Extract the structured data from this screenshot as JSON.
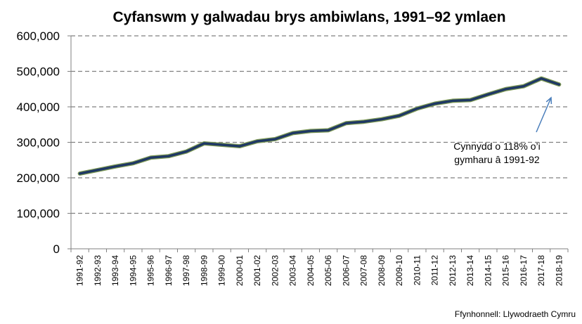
{
  "chart_data": {
    "type": "line",
    "title": "Cyfanswm y galwadau brys ambiwlans, 1991–92 ymlaen",
    "categories": [
      "1991-92",
      "1992-93",
      "1993-94",
      "1994-95",
      "1995-96",
      "1996-97",
      "1997-98",
      "1998-99",
      "1999-00",
      "2000-01",
      "2001-02",
      "2002-03",
      "2003-04",
      "2004-05",
      "2005-06",
      "2006-07",
      "2007-08",
      "2008-09",
      "2009-10",
      "2010-11",
      "2011-12",
      "2012-13",
      "2013-14",
      "2014-15",
      "2015-16",
      "2016-17",
      "2017-18",
      "2018-19"
    ],
    "series": [
      {
        "values": [
          212000,
          222000,
          232000,
          241000,
          257000,
          261000,
          274000,
          297000,
          293000,
          289000,
          303000,
          309000,
          326000,
          332000,
          334000,
          354000,
          358000,
          365000,
          375000,
          395000,
          409000,
          417000,
          419000,
          435000,
          450000,
          458000,
          480000,
          463000
        ]
      }
    ],
    "ylim": [
      0,
      600000
    ],
    "yticks": [
      "0",
      "100,000",
      "200,000",
      "300,000",
      "400,000",
      "500,000",
      "600,000"
    ],
    "grid": true,
    "legend": "none",
    "line_color": "#1f3864",
    "line_outline_color": "#7f9a56",
    "annotation": {
      "lines": [
        "Cynnydd o 118% o’i",
        "gymharu â 1991-92"
      ],
      "arrow_color": "#4a7ebb"
    },
    "source": "Ffynhonnell: Llywodraeth Cymru"
  }
}
